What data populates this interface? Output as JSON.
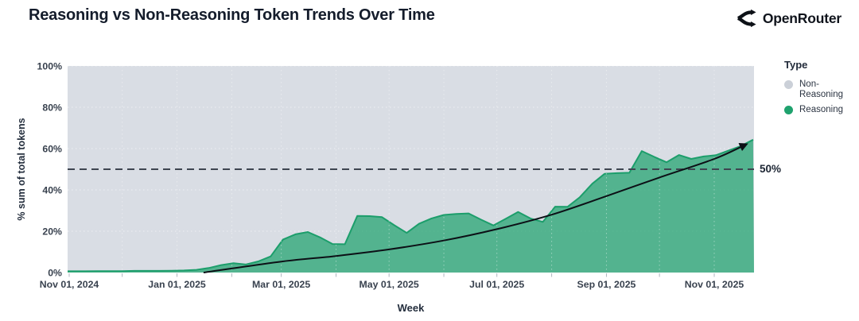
{
  "header": {
    "title": "Reasoning vs Non-Reasoning Token Trends Over Time",
    "brand": "OpenRouter"
  },
  "colors": {
    "plot_bg": "#d9dde4",
    "grid": "#ffffff",
    "reasoning_green": "#1fa26e",
    "reasoning_line": "#1c9e6b",
    "non_reasoning_gray": "#cbd0d8",
    "reference_line": "#3e4550",
    "trend_line": "#0c1016",
    "tick_text": "#39424f",
    "axis_title_text": "#242e3d"
  },
  "chart_data": {
    "type": "area",
    "title": "Reasoning vs Non-Reasoning Token Trends Over Time",
    "xlabel": "Week",
    "ylabel": "% sum of total tokens",
    "ylim": [
      0,
      100
    ],
    "grid": true,
    "y_ticks": [
      0,
      20,
      40,
      60,
      80,
      100
    ],
    "y_tick_labels": [
      "0%",
      "20%",
      "40%",
      "60%",
      "80%",
      "100%"
    ],
    "x_ticks": [
      {
        "date": "2024-11-01",
        "label": "Nov 01, 2024"
      },
      {
        "date": "2025-01-01",
        "label": "Jan 01, 2025"
      },
      {
        "date": "2025-03-01",
        "label": "Mar 01, 2025"
      },
      {
        "date": "2025-05-01",
        "label": "May 01, 2025"
      },
      {
        "date": "2025-07-01",
        "label": "Jul 01, 2025"
      },
      {
        "date": "2025-09-01",
        "label": "Sep 01, 2025"
      },
      {
        "date": "2025-11-01",
        "label": "Nov 01, 2025"
      }
    ],
    "series": [
      {
        "name": "Reasoning",
        "color": "#1fa26e",
        "fill_opacity": 0.72,
        "x": [
          "2024-10-27",
          "2024-11-03",
          "2024-11-10",
          "2024-11-17",
          "2024-11-24",
          "2024-12-01",
          "2024-12-08",
          "2024-12-15",
          "2024-12-22",
          "2024-12-29",
          "2025-01-05",
          "2025-01-12",
          "2025-01-19",
          "2025-01-26",
          "2025-02-02",
          "2025-02-09",
          "2025-02-16",
          "2025-02-23",
          "2025-03-02",
          "2025-03-09",
          "2025-03-16",
          "2025-03-23",
          "2025-03-30",
          "2025-04-06",
          "2025-04-13",
          "2025-04-20",
          "2025-04-27",
          "2025-05-04",
          "2025-05-11",
          "2025-05-18",
          "2025-05-25",
          "2025-06-01",
          "2025-06-08",
          "2025-06-15",
          "2025-06-22",
          "2025-06-29",
          "2025-07-06",
          "2025-07-13",
          "2025-07-20",
          "2025-07-27",
          "2025-08-03",
          "2025-08-10",
          "2025-08-17",
          "2025-08-24",
          "2025-08-31",
          "2025-09-07",
          "2025-09-14",
          "2025-09-21",
          "2025-09-28",
          "2025-10-05",
          "2025-10-12",
          "2025-10-19",
          "2025-10-26",
          "2025-11-02",
          "2025-11-09",
          "2025-11-16",
          "2025-11-23"
        ],
        "values": [
          0.6,
          0.6,
          0.6,
          0.7,
          0.7,
          0.7,
          0.8,
          0.8,
          0.8,
          0.9,
          1.0,
          1.3,
          2.2,
          3.6,
          4.5,
          3.9,
          5.4,
          7.8,
          16.0,
          18.5,
          19.6,
          17.0,
          13.8,
          13.7,
          27.4,
          27.3,
          26.8,
          22.9,
          19.2,
          23.6,
          26.2,
          27.9,
          28.4,
          28.6,
          25.6,
          22.8,
          26.0,
          29.3,
          26.2,
          24.5,
          31.9,
          31.8,
          36.5,
          43.0,
          47.8,
          48.1,
          48.3,
          58.8,
          56.0,
          53.4,
          56.9,
          55.0,
          56.2,
          56.8,
          59.0,
          61.2,
          64.3
        ]
      }
    ],
    "background_series": {
      "name": "Non-Reasoning",
      "color": "#cbd0d8"
    },
    "reference_line": {
      "value": 50,
      "label": "50%",
      "style": "dashed"
    },
    "trend_arrow": {
      "color": "#0c1016",
      "points": [
        [
          "2025-01-16",
          0
        ],
        [
          "2025-03-01",
          5.3
        ],
        [
          "2025-04-01",
          8.0
        ],
        [
          "2025-05-01",
          11.2
        ],
        [
          "2025-06-01",
          15.5
        ],
        [
          "2025-07-01",
          21.0
        ],
        [
          "2025-08-01",
          28.0
        ],
        [
          "2025-09-01",
          37.0
        ],
        [
          "2025-10-01",
          46.0
        ],
        [
          "2025-11-01",
          55.0
        ],
        [
          "2025-11-19",
          62.0
        ]
      ]
    },
    "legend": {
      "title": "Type",
      "position": "right",
      "entries": [
        {
          "label": "Non-Reasoning",
          "color": "#cbd0d8"
        },
        {
          "label": "Reasoning",
          "color": "#1fa26e"
        }
      ]
    }
  }
}
